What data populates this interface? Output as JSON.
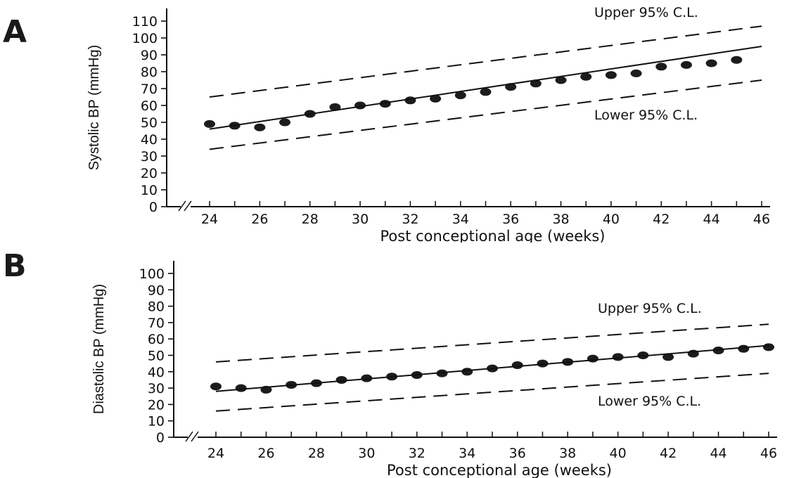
{
  "chart_data": [
    {
      "panel": "A",
      "type": "scatter",
      "xlabel": "Post conceptional age (weeks)",
      "ylabel": "Systolic BP (mmHg)",
      "xlim": [
        24,
        46
      ],
      "ylim": [
        0,
        110
      ],
      "x_ticks": [
        24,
        26,
        28,
        30,
        32,
        34,
        36,
        38,
        40,
        42,
        44,
        46
      ],
      "y_ticks": [
        0,
        10,
        20,
        30,
        40,
        50,
        60,
        70,
        80,
        90,
        100,
        110
      ],
      "axis_break": true,
      "grid": false,
      "series": [
        {
          "type": "scatter",
          "x": [
            24,
            25,
            26,
            27,
            28,
            29,
            30,
            31,
            32,
            33,
            34,
            35,
            36,
            37,
            38,
            39,
            40,
            41,
            42,
            43,
            44,
            45
          ],
          "y": [
            49,
            48,
            47,
            50,
            55,
            59,
            60,
            61,
            63,
            64,
            66,
            68,
            71,
            73,
            75,
            77,
            78,
            79,
            83,
            84,
            85,
            87
          ]
        },
        {
          "type": "line",
          "style": "solid",
          "x": [
            24,
            46
          ],
          "y": [
            46,
            95
          ]
        },
        {
          "type": "line",
          "style": "dashed",
          "x": [
            24,
            46
          ],
          "y": [
            65,
            107
          ]
        },
        {
          "type": "line",
          "style": "dashed",
          "x": [
            24,
            46
          ],
          "y": [
            34,
            75
          ]
        }
      ],
      "annotations": [
        {
          "text": "Upper 95% C.L.",
          "position": "top-right"
        },
        {
          "text": "Lower 95% C.L.",
          "position": "below-lower-line-right"
        }
      ]
    },
    {
      "panel": "B",
      "type": "scatter",
      "xlabel": "Post conceptional age (weeks)",
      "ylabel": "Diastolic BP (mmHg)",
      "xlim": [
        24,
        46
      ],
      "ylim": [
        0,
        100
      ],
      "x_ticks": [
        24,
        26,
        28,
        30,
        32,
        34,
        36,
        38,
        40,
        42,
        44,
        46
      ],
      "y_ticks": [
        0,
        10,
        20,
        30,
        40,
        50,
        60,
        70,
        80,
        90,
        100
      ],
      "axis_break": true,
      "grid": false,
      "series": [
        {
          "type": "scatter",
          "x": [
            24,
            25,
            26,
            27,
            28,
            29,
            30,
            31,
            32,
            33,
            34,
            35,
            36,
            37,
            38,
            39,
            40,
            41,
            42,
            43,
            44,
            45,
            46
          ],
          "y": [
            31,
            30,
            29,
            32,
            33,
            35,
            36,
            37,
            38,
            39,
            40,
            42,
            44,
            45,
            46,
            48,
            49,
            50,
            49,
            51,
            53,
            54,
            55
          ]
        },
        {
          "type": "line",
          "style": "solid",
          "x": [
            24,
            46
          ],
          "y": [
            28,
            56
          ]
        },
        {
          "type": "line",
          "style": "dashed",
          "x": [
            24,
            46
          ],
          "y": [
            46,
            69
          ]
        },
        {
          "type": "line",
          "style": "dashed",
          "x": [
            24,
            46
          ],
          "y": [
            16,
            39
          ]
        }
      ],
      "annotations": [
        {
          "text": "Upper 95% C.L.",
          "position": "above-upper-line-right"
        },
        {
          "text": "Lower 95% C.L.",
          "position": "below-lower-line-right"
        }
      ]
    }
  ],
  "panels": [
    {
      "letter": "A"
    },
    {
      "letter": "B"
    }
  ]
}
